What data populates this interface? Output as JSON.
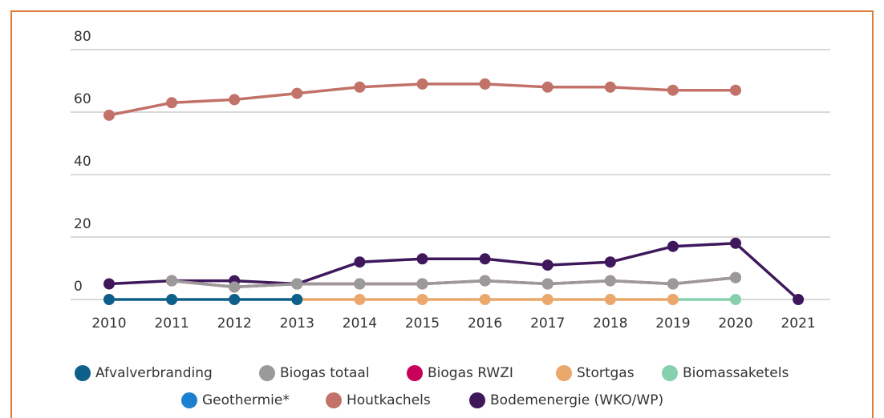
{
  "chart_data": {
    "type": "line",
    "categories": [
      "2010",
      "2011",
      "2012",
      "2013",
      "2014",
      "2015",
      "2016",
      "2017",
      "2018",
      "2019",
      "2020",
      "2021"
    ],
    "ylim": [
      0,
      80
    ],
    "yticks": [
      0,
      20,
      40,
      60,
      80
    ],
    "grid": true,
    "series": [
      {
        "name": "Afvalverbranding",
        "color": "#0e5f8a",
        "values": [
          0,
          0,
          0,
          0,
          null,
          null,
          null,
          null,
          null,
          null,
          null,
          null
        ]
      },
      {
        "name": "Biogas totaal",
        "color": "#9a9a9a",
        "values": [
          null,
          6,
          4,
          5,
          5,
          5,
          6,
          5,
          6,
          5,
          7,
          null
        ]
      },
      {
        "name": "Biogas RWZI",
        "color": "#c8005a",
        "values": [
          null,
          6,
          4,
          5,
          5,
          5,
          6,
          5,
          6,
          5,
          7,
          null
        ]
      },
      {
        "name": "Stortgas",
        "color": "#eba86c",
        "values": [
          null,
          null,
          null,
          0,
          0,
          0,
          0,
          0,
          0,
          0,
          null,
          null
        ]
      },
      {
        "name": "Biomassaketels",
        "color": "#86d0ae",
        "values": [
          null,
          null,
          null,
          null,
          null,
          null,
          null,
          null,
          null,
          0,
          0,
          null
        ]
      },
      {
        "name": "Geothermie*",
        "color": "#1b80cf",
        "values": [
          null,
          null,
          null,
          null,
          null,
          null,
          null,
          null,
          null,
          null,
          null,
          null
        ]
      },
      {
        "name": "Houtkachels",
        "color": "#c27268",
        "values": [
          59,
          63,
          64,
          66,
          68,
          69,
          69,
          68,
          68,
          67,
          67,
          null
        ]
      },
      {
        "name": "Bodemenergie (WKO/WP)",
        "color": "#3f185c",
        "values": [
          5,
          6,
          6,
          5,
          12,
          13,
          13,
          11,
          12,
          17,
          18,
          0
        ]
      }
    ]
  }
}
